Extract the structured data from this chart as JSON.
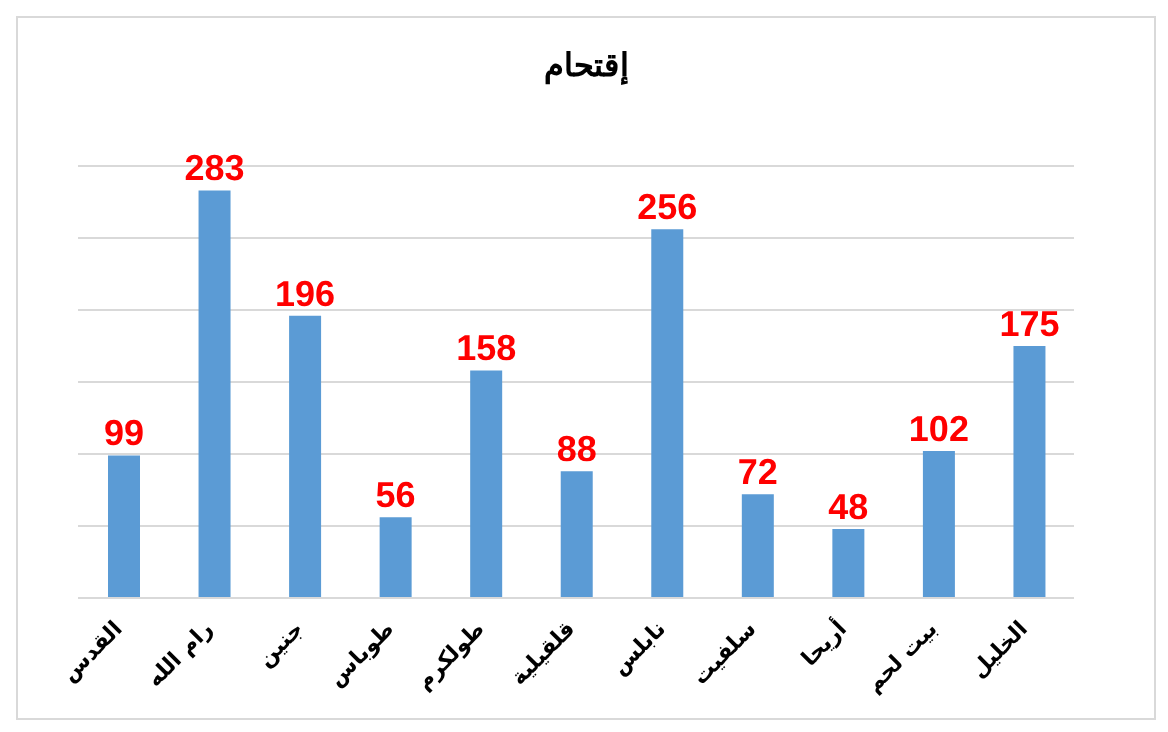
{
  "chart_data": {
    "type": "bar",
    "title": "إقتحام",
    "categories": [
      "القدس",
      "رام الله",
      "جنين",
      "طوباس",
      "طولكرم",
      "قلقيلية",
      "نابلس",
      "سلفيت",
      "أريحا",
      "بيت لحم",
      "الخليل"
    ],
    "values": [
      99,
      283,
      196,
      56,
      158,
      88,
      256,
      72,
      48,
      102,
      175
    ],
    "color": "#5b9bd5",
    "tick_labels": "x",
    "grid": "y",
    "data_labels": true
  }
}
